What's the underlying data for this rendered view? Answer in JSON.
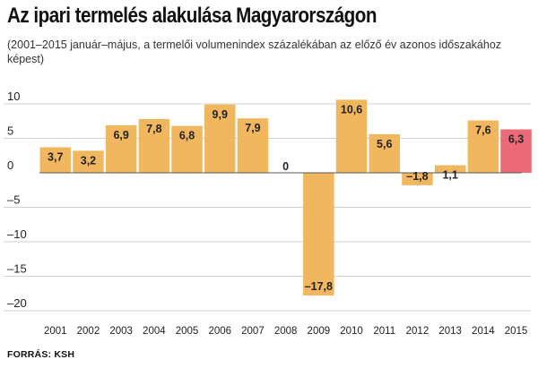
{
  "header": {
    "title": "Az ipari termelés alakulása Magyarországon",
    "subtitle": "(2001–2015 január–május, a termelői volumenindex százalékában az előző év azonos időszakához képest)"
  },
  "footer": {
    "source": "FORRÁS: KSH"
  },
  "colors": {
    "bar": "#f0b75e",
    "highlight": "#ea6a78",
    "grid": "#d0d0d0",
    "zero_line": "#555555"
  },
  "chart_data": {
    "type": "bar",
    "title": "Az ipari termelés alakulása Magyarországon",
    "subtitle": "(2001–2015 január–május, a termelői volumenindex százalékában az előző év azonos időszakához képest)",
    "categories": [
      "2001",
      "2002",
      "2003",
      "2004",
      "2005",
      "2006",
      "2007",
      "2008",
      "2009",
      "2010",
      "2011",
      "2012",
      "2013",
      "2014",
      "2015"
    ],
    "values": [
      3.7,
      3.2,
      6.9,
      7.8,
      6.8,
      9.9,
      7.9,
      0,
      -17.8,
      10.6,
      5.6,
      -1.8,
      1.1,
      7.6,
      6.3
    ],
    "value_labels": [
      "3,7",
      "3,2",
      "6,9",
      "7,8",
      "6,8",
      "9,9",
      "7,9",
      "0",
      "–17,8",
      "10,6",
      "5,6",
      "–1,8",
      "1,1",
      "7,6",
      "6,3"
    ],
    "highlight_category": "2015",
    "yticks": [
      10,
      5,
      0,
      -5,
      -10,
      -15,
      -20
    ],
    "ytick_labels": [
      "10",
      "5",
      "0",
      "–5",
      "–10",
      "–15",
      "–20"
    ],
    "ylim": [
      -20,
      10
    ],
    "grid": true,
    "legend": "none"
  }
}
